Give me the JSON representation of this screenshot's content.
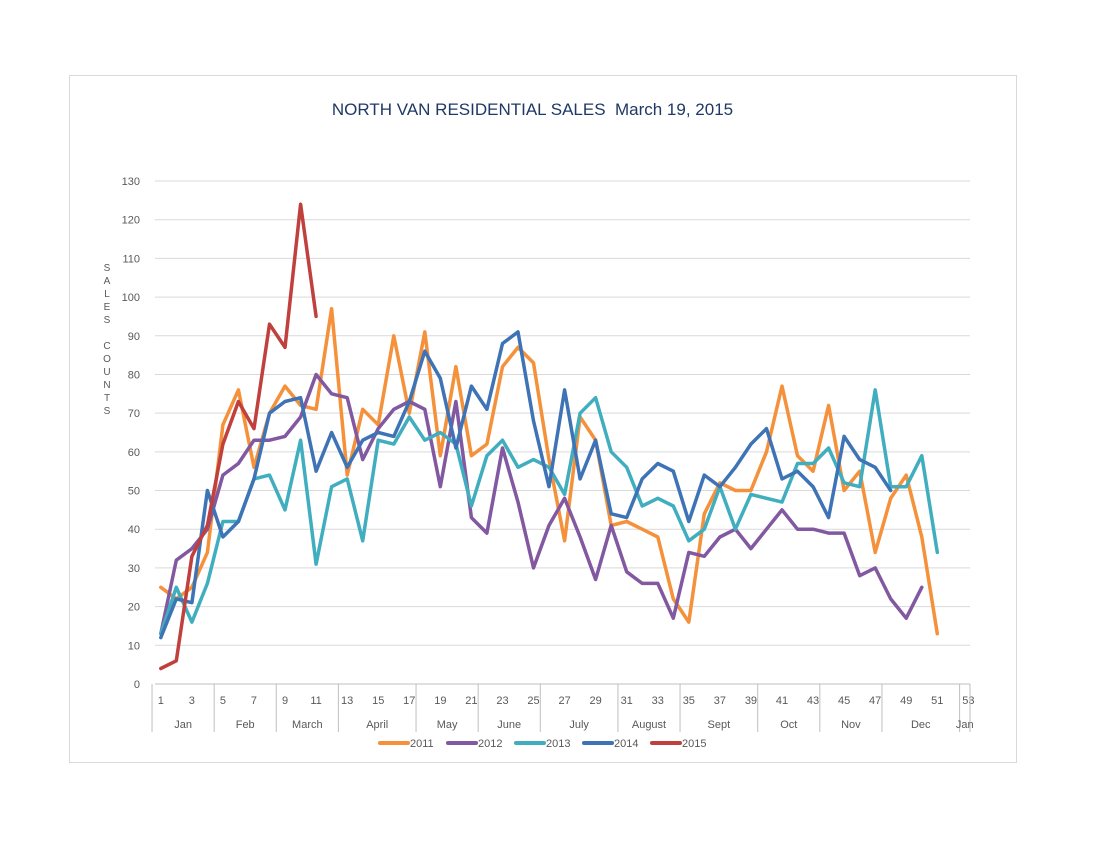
{
  "chart_data": {
    "type": "line",
    "title": "NORTH VAN RESIDENTIAL SALES  March 19, 2015",
    "ylabel_letters": [
      "S",
      "A",
      "L",
      "E",
      "S",
      "",
      "C",
      "O",
      "U",
      "N",
      "T",
      "S"
    ],
    "xlabel": "",
    "ylim": [
      0,
      130
    ],
    "yticks": [
      0,
      10,
      20,
      30,
      40,
      50,
      60,
      70,
      80,
      90,
      100,
      110,
      120,
      130
    ],
    "xlim": [
      1,
      54
    ],
    "xtick_labels": [
      "1",
      "3",
      "5",
      "7",
      "9",
      "11",
      "13",
      "15",
      "17",
      "19",
      "21",
      "23",
      "25",
      "27",
      "29",
      "31",
      "33",
      "35",
      "37",
      "39",
      "41",
      "43",
      "45",
      "47",
      "49",
      "51",
      "53"
    ],
    "month_labels": [
      "Jan",
      "Feb",
      "March",
      "April",
      "May",
      "June",
      "July",
      "August",
      "Sept",
      "Oct",
      "Nov",
      "Dec",
      "Jan"
    ],
    "month_boundaries": [
      1,
      5,
      9,
      13,
      18,
      22,
      26,
      31,
      35,
      40,
      44,
      48,
      53
    ],
    "grid": true,
    "legend_position": "bottom",
    "series": [
      {
        "name": "2011",
        "color": "#f4913a",
        "values": [
          25,
          22,
          25,
          34,
          67,
          76,
          56,
          70,
          77,
          72,
          71,
          97,
          54,
          71,
          67,
          90,
          70,
          91,
          59,
          82,
          59,
          62,
          82,
          87,
          83,
          58,
          37,
          69,
          63,
          41,
          42,
          40,
          38,
          22,
          16,
          44,
          52,
          50,
          50,
          60,
          77,
          59,
          55,
          72,
          50,
          55,
          34,
          48,
          54,
          38,
          13
        ]
      },
      {
        "name": "2012",
        "color": "#8258a0",
        "values": [
          13,
          32,
          35,
          40,
          54,
          57,
          63,
          63,
          64,
          69,
          80,
          75,
          74,
          58,
          66,
          71,
          73,
          71,
          51,
          73,
          43,
          39,
          61,
          47,
          30,
          41,
          48,
          38,
          27,
          41,
          29,
          26,
          26,
          17,
          34,
          33,
          38,
          40,
          35,
          40,
          45,
          40,
          40,
          39,
          39,
          28,
          30,
          22,
          17,
          25
        ]
      },
      {
        "name": "2013",
        "color": "#40aebf",
        "values": [
          13,
          25,
          16,
          26,
          42,
          42,
          53,
          54,
          45,
          63,
          31,
          51,
          53,
          37,
          63,
          62,
          69,
          63,
          65,
          62,
          46,
          59,
          63,
          56,
          58,
          56,
          49,
          70,
          74,
          60,
          56,
          46,
          48,
          46,
          37,
          40,
          51,
          40,
          49,
          48,
          47,
          57,
          57,
          61,
          52,
          51,
          76,
          51,
          51,
          59,
          34
        ]
      },
      {
        "name": "2014",
        "color": "#3e73b5",
        "values": [
          12,
          22,
          21,
          50,
          38,
          42,
          53,
          70,
          73,
          74,
          55,
          65,
          56,
          63,
          65,
          64,
          73,
          86,
          79,
          61,
          77,
          71,
          88,
          91,
          68,
          51,
          76,
          53,
          63,
          44,
          43,
          53,
          57,
          55,
          42,
          54,
          51,
          56,
          62,
          66,
          53,
          55,
          51,
          43,
          64,
          58,
          56,
          50
        ]
      },
      {
        "name": "2015",
        "color": "#c0403d",
        "values": [
          4,
          6,
          33,
          41,
          62,
          73,
          66,
          93,
          87,
          124,
          95
        ]
      }
    ]
  }
}
